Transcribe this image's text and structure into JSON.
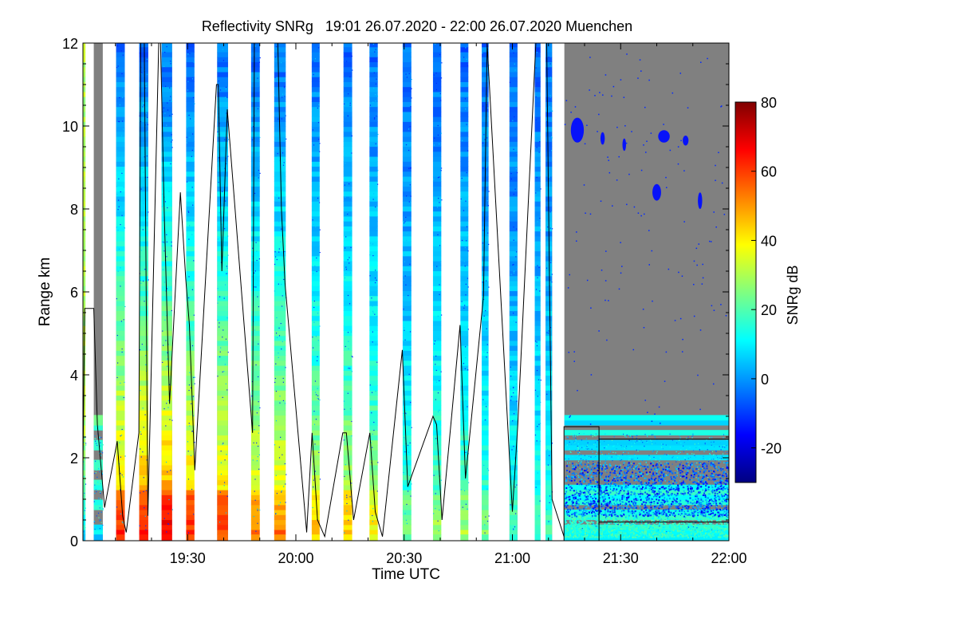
{
  "chart_data": {
    "type": "heatmap",
    "title": "Reflectivity SNRg   19:01 26.07.2020 - 22:00 26.07.2020 Muenchen",
    "xlabel": "Time UTC",
    "ylabel": "Range km",
    "x_unit": "minutes since 19:00 UTC",
    "xlim": [
      1,
      180
    ],
    "ylim": [
      0,
      12
    ],
    "x_ticks": [
      {
        "value": 30,
        "label": "19:30"
      },
      {
        "value": 60,
        "label": "20:00"
      },
      {
        "value": 90,
        "label": "20:30"
      },
      {
        "value": 120,
        "label": "21:00"
      },
      {
        "value": 150,
        "label": "21:30"
      },
      {
        "value": 180,
        "label": "22:00"
      }
    ],
    "y_ticks": [
      {
        "value": 0,
        "label": "0"
      },
      {
        "value": 2,
        "label": "2"
      },
      {
        "value": 4,
        "label": "4"
      },
      {
        "value": 6,
        "label": "6"
      },
      {
        "value": 8,
        "label": "8"
      },
      {
        "value": 10,
        "label": "10"
      },
      {
        "value": 12,
        "label": "12"
      }
    ],
    "colorbar": {
      "label": "SNRg dB",
      "range": [
        -30,
        80
      ],
      "ticks": [
        {
          "value": -20,
          "label": "-20"
        },
        {
          "value": 0,
          "label": "0"
        },
        {
          "value": 20,
          "label": "20"
        },
        {
          "value": 40,
          "label": "40"
        },
        {
          "value": 60,
          "label": "60"
        },
        {
          "value": 80,
          "label": "80"
        }
      ],
      "colors": [
        "#000080",
        "#0000ff",
        "#0080ff",
        "#00ffff",
        "#80ff80",
        "#ffff00",
        "#ff8000",
        "#ff0000",
        "#800000"
      ]
    },
    "scans": [
      {
        "start": 1.0,
        "end": 1.7,
        "bottom_snr": 10,
        "low_snr": 15,
        "top_km": 12,
        "profile": "clear",
        "grey": false
      },
      {
        "start": 4.0,
        "end": 6.5,
        "bottom_snr": 8,
        "low_snr": 5,
        "top_km": 12,
        "profile": "clear",
        "grey": true
      },
      {
        "start": 10.2,
        "end": 12.6,
        "bottom_snr": 65,
        "low_snr": 40,
        "top_km": 12,
        "profile": "cloud",
        "grey": true
      },
      {
        "start": 16.6,
        "end": 19.1,
        "bottom_snr": 68,
        "low_snr": 45,
        "top_km": 12,
        "profile": "cloud",
        "grey": true
      },
      {
        "start": 22.8,
        "end": 25.7,
        "bottom_snr": 70,
        "low_snr": 45,
        "top_km": 12,
        "profile": "cloud",
        "grey": true
      },
      {
        "start": 29.6,
        "end": 31.9,
        "bottom_snr": 62,
        "low_snr": 50,
        "top_km": 12,
        "profile": "cloud",
        "grey": false
      },
      {
        "start": 38.2,
        "end": 41.2,
        "bottom_snr": 60,
        "low_snr": 45,
        "top_km": 12,
        "profile": "cloud",
        "grey": true
      },
      {
        "start": 47.6,
        "end": 50.0,
        "bottom_snr": 55,
        "low_snr": 35,
        "top_km": 12,
        "profile": "cloud",
        "grey": false
      },
      {
        "start": 54.0,
        "end": 57.2,
        "bottom_snr": 55,
        "low_snr": 35,
        "top_km": 12,
        "profile": "cloud",
        "grey": false
      },
      {
        "start": 64.4,
        "end": 66.6,
        "bottom_snr": 45,
        "low_snr": 35,
        "top_km": 12,
        "profile": "cloud",
        "grey": false
      },
      {
        "start": 73.2,
        "end": 75.6,
        "bottom_snr": 45,
        "low_snr": 30,
        "top_km": 12,
        "profile": "cloud",
        "grey": false
      },
      {
        "start": 80.4,
        "end": 82.7,
        "bottom_snr": 40,
        "low_snr": 30,
        "top_km": 12,
        "profile": "cloud",
        "grey": false
      },
      {
        "start": 89.6,
        "end": 92.0,
        "bottom_snr": 25,
        "low_snr": 18,
        "top_km": 12,
        "profile": "cloud",
        "grey": false
      },
      {
        "start": 98.0,
        "end": 100.3,
        "bottom_snr": 30,
        "low_snr": 18,
        "top_km": 12,
        "profile": "cloud",
        "grey": false
      },
      {
        "start": 105.6,
        "end": 107.8,
        "bottom_snr": 30,
        "low_snr": 15,
        "top_km": 12,
        "profile": "cloud",
        "grey": false
      },
      {
        "start": 111.5,
        "end": 113.4,
        "bottom_snr": 25,
        "low_snr": 15,
        "top_km": 12,
        "profile": "cloud",
        "grey": false
      },
      {
        "start": 119.2,
        "end": 121.4,
        "bottom_snr": 20,
        "low_snr": 12,
        "top_km": 12,
        "profile": "cloud",
        "grey": true
      },
      {
        "start": 126.2,
        "end": 127.8,
        "bottom_snr": 20,
        "low_snr": 10,
        "top_km": 12,
        "profile": "cloud",
        "grey": false
      },
      {
        "start": 129.2,
        "end": 131.0,
        "bottom_snr": 20,
        "low_snr": 10,
        "top_km": 12,
        "profile": "cloud",
        "grey": true
      },
      {
        "start": 134.4,
        "end": 180.0,
        "bottom_snr": 15,
        "low_snr": -5,
        "top_km": 12,
        "profile": "clear",
        "grey": true
      }
    ],
    "overlay_line": {
      "name": "cloud base / top line",
      "x": [
        1,
        1.5,
        4,
        5,
        7,
        10.5,
        12,
        13,
        16.5,
        17,
        18,
        19,
        22,
        22.5,
        23.5,
        25,
        28,
        29.5,
        30.5,
        32,
        38,
        38.5,
        39.5,
        41,
        48,
        48.5,
        55,
        56,
        57,
        63,
        64.5,
        66,
        68,
        73,
        74,
        76,
        80.5,
        82,
        84,
        89.5,
        91,
        98,
        99,
        100.5,
        105.5,
        107,
        112,
        113,
        120,
        121.5,
        126.5,
        127.5,
        129.5,
        131,
        134.3
      ],
      "y": [
        1.8,
        5.6,
        5.6,
        2.8,
        0.8,
        2.4,
        0.6,
        0.2,
        2.6,
        12,
        12,
        0.6,
        12,
        12,
        8,
        3.3,
        8.4,
        6.3,
        5.2,
        1.7,
        11,
        11,
        6.5,
        10.4,
        2.6,
        12,
        12,
        8,
        6.2,
        0.2,
        2.6,
        0.5,
        0.1,
        2.6,
        2.6,
        0.5,
        2.6,
        0.7,
        0.1,
        4.6,
        1.3,
        3.0,
        2.8,
        0.5,
        5.2,
        1.5,
        5.9,
        12,
        0.7,
        2.8,
        12,
        12,
        12,
        1.0,
        0.1
      ]
    },
    "overlay_boxes": [
      {
        "x0": 134.3,
        "x1": 144,
        "y_top": 2.75,
        "y_bottom": 0
      },
      {
        "x0": 144,
        "x1": 180,
        "y_top": 2.45,
        "y_bottom": 0.45
      }
    ],
    "echoes": [
      {
        "x": 138,
        "y": 9.9,
        "rx": 1.8,
        "ry": 0.3
      },
      {
        "x": 145,
        "y": 9.7,
        "rx": 0.6,
        "ry": 0.15
      },
      {
        "x": 151,
        "y": 9.55,
        "rx": 0.5,
        "ry": 0.15
      },
      {
        "x": 162,
        "y": 9.75,
        "rx": 1.6,
        "ry": 0.15
      },
      {
        "x": 168,
        "y": 9.65,
        "rx": 0.8,
        "ry": 0.12
      },
      {
        "x": 160,
        "y": 8.4,
        "rx": 1.2,
        "ry": 0.2
      },
      {
        "x": 172,
        "y": 8.2,
        "rx": 0.6,
        "ry": 0.2
      }
    ]
  }
}
